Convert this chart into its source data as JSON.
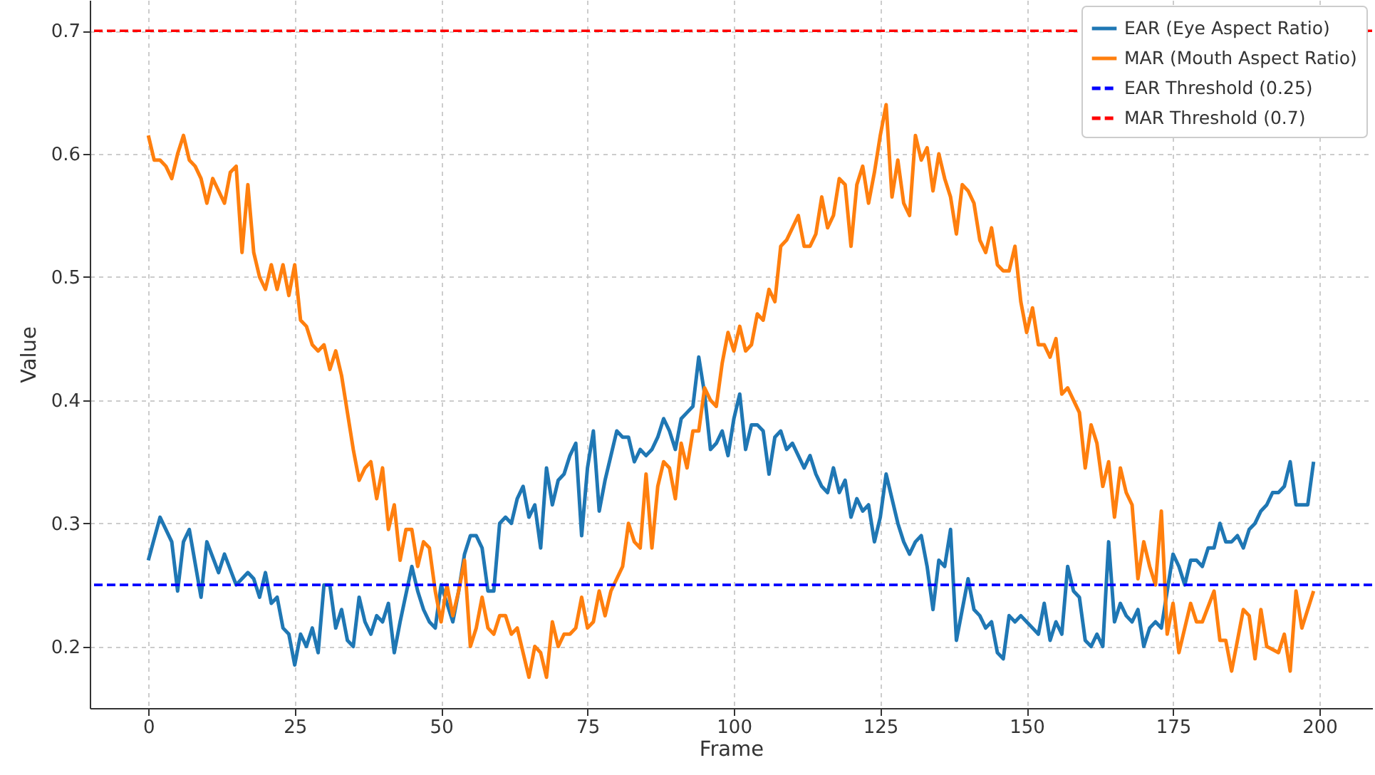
{
  "chart_data": {
    "type": "line",
    "xlabel": "Frame",
    "ylabel": "Value",
    "xlim": [
      -10,
      209
    ],
    "xticks": [
      0,
      25,
      50,
      75,
      100,
      125,
      150,
      175,
      200
    ],
    "ylim": [
      0.15,
      0.725
    ],
    "yticks": [
      0.2,
      0.3,
      0.4,
      0.5,
      0.6,
      0.7
    ],
    "grid": true,
    "legend": "top right",
    "series": [
      {
        "name": "EAR (Eye Aspect Ratio)",
        "color": "#1f77b4",
        "x": [
          0,
          2,
          4,
          5,
          6,
          7,
          9,
          10,
          12,
          13,
          15,
          17,
          18,
          19,
          20,
          21,
          22,
          23,
          24,
          25,
          26,
          27,
          28,
          29,
          30,
          31,
          32,
          33,
          34,
          35,
          36,
          37,
          38,
          39,
          40,
          41,
          42,
          43,
          45,
          46,
          47,
          48,
          49,
          50,
          51,
          52,
          53,
          54,
          55,
          56,
          57,
          58,
          59,
          60,
          61,
          62,
          63,
          64,
          65,
          66,
          67,
          68,
          69,
          70,
          71,
          72,
          73,
          74,
          75,
          76,
          77,
          78,
          79,
          80,
          81,
          82,
          83,
          84,
          85,
          86,
          87,
          88,
          89,
          90,
          91,
          92,
          93,
          94,
          95,
          96,
          97,
          98,
          99,
          100,
          101,
          102,
          103,
          104,
          105,
          106,
          107,
          108,
          109,
          110,
          111,
          112,
          113,
          114,
          115,
          116,
          117,
          118,
          119,
          120,
          121,
          122,
          123,
          124,
          125,
          126,
          127,
          128,
          129,
          130,
          131,
          132,
          133,
          134,
          135,
          136,
          137,
          138,
          139,
          140,
          141,
          142,
          143,
          144,
          145,
          146,
          147,
          148,
          149,
          150,
          151,
          152,
          153,
          154,
          155,
          156,
          157,
          158,
          159,
          160,
          161,
          162,
          163,
          164,
          165,
          166,
          167,
          168,
          169,
          170,
          171,
          172,
          173,
          174,
          175,
          176,
          177,
          178,
          179,
          180,
          181,
          182,
          183,
          184,
          185,
          186,
          187,
          188,
          189,
          190,
          191,
          192,
          193,
          194,
          195,
          196,
          198,
          199
        ],
        "values": [
          0.27,
          0.305,
          0.285,
          0.245,
          0.285,
          0.295,
          0.24,
          0.285,
          0.26,
          0.275,
          0.25,
          0.26,
          0.255,
          0.24,
          0.26,
          0.235,
          0.24,
          0.215,
          0.21,
          0.185,
          0.21,
          0.2,
          0.215,
          0.195,
          0.25,
          0.25,
          0.215,
          0.23,
          0.205,
          0.2,
          0.24,
          0.22,
          0.21,
          0.225,
          0.22,
          0.235,
          0.195,
          0.22,
          0.265,
          0.245,
          0.23,
          0.22,
          0.215,
          0.25,
          0.235,
          0.22,
          0.245,
          0.275,
          0.29,
          0.29,
          0.28,
          0.245,
          0.245,
          0.3,
          0.305,
          0.3,
          0.32,
          0.33,
          0.305,
          0.315,
          0.28,
          0.345,
          0.315,
          0.335,
          0.34,
          0.355,
          0.365,
          0.29,
          0.345,
          0.375,
          0.31,
          0.335,
          0.355,
          0.375,
          0.37,
          0.37,
          0.35,
          0.36,
          0.355,
          0.36,
          0.37,
          0.385,
          0.375,
          0.36,
          0.385,
          0.39,
          0.395,
          0.435,
          0.405,
          0.36,
          0.365,
          0.375,
          0.355,
          0.385,
          0.405,
          0.36,
          0.38,
          0.38,
          0.375,
          0.34,
          0.37,
          0.375,
          0.36,
          0.365,
          0.355,
          0.345,
          0.355,
          0.34,
          0.33,
          0.325,
          0.345,
          0.325,
          0.335,
          0.305,
          0.32,
          0.31,
          0.315,
          0.285,
          0.305,
          0.34,
          0.32,
          0.3,
          0.285,
          0.275,
          0.285,
          0.29,
          0.265,
          0.23,
          0.27,
          0.265,
          0.295,
          0.205,
          0.23,
          0.255,
          0.23,
          0.225,
          0.215,
          0.22,
          0.195,
          0.19,
          0.225,
          0.22,
          0.225,
          0.22,
          0.215,
          0.21,
          0.235,
          0.205,
          0.22,
          0.21,
          0.265,
          0.245,
          0.24,
          0.205,
          0.2,
          0.21,
          0.2,
          0.285,
          0.22,
          0.235,
          0.225,
          0.22,
          0.23,
          0.2,
          0.215,
          0.22,
          0.215,
          0.245,
          0.275,
          0.265,
          0.25,
          0.27,
          0.27,
          0.265,
          0.28,
          0.28,
          0.3,
          0.285,
          0.285,
          0.29,
          0.28,
          0.295,
          0.3,
          0.31,
          0.315,
          0.325,
          0.325,
          0.33,
          0.35,
          0.315,
          0.315,
          0.35
        ]
      },
      {
        "name": "MAR (Mouth Aspect Ratio)",
        "color": "#ff7f0e",
        "x": [
          0,
          1,
          2,
          3,
          4,
          5,
          6,
          7,
          8,
          9,
          10,
          11,
          12,
          13,
          14,
          15,
          16,
          17,
          18,
          19,
          20,
          21,
          22,
          23,
          24,
          25,
          26,
          27,
          28,
          29,
          30,
          31,
          32,
          33,
          34,
          35,
          36,
          37,
          38,
          39,
          40,
          41,
          42,
          43,
          44,
          45,
          46,
          47,
          48,
          49,
          50,
          51,
          52,
          53,
          54,
          55,
          56,
          57,
          58,
          59,
          60,
          61,
          62,
          63,
          64,
          65,
          66,
          67,
          68,
          69,
          70,
          71,
          72,
          73,
          74,
          75,
          76,
          77,
          78,
          79,
          80,
          81,
          82,
          83,
          84,
          85,
          86,
          87,
          88,
          89,
          90,
          91,
          92,
          93,
          94,
          95,
          96,
          97,
          98,
          99,
          100,
          101,
          102,
          103,
          104,
          105,
          106,
          107,
          108,
          109,
          110,
          111,
          112,
          113,
          114,
          115,
          116,
          117,
          118,
          119,
          120,
          121,
          122,
          123,
          124,
          125,
          126,
          127,
          128,
          129,
          130,
          131,
          132,
          133,
          134,
          135,
          136,
          137,
          138,
          139,
          140,
          141,
          142,
          143,
          144,
          145,
          146,
          147,
          148,
          149,
          150,
          151,
          152,
          153,
          154,
          155,
          156,
          157,
          158,
          159,
          160,
          161,
          162,
          163,
          164,
          165,
          166,
          167,
          168,
          169,
          170,
          171,
          172,
          173,
          174,
          175,
          176,
          178,
          179,
          180,
          182,
          183,
          184,
          185,
          187,
          188,
          189,
          190,
          191,
          193,
          194,
          195,
          196,
          197,
          199
        ],
        "values": [
          0.615,
          0.595,
          0.595,
          0.59,
          0.58,
          0.6,
          0.615,
          0.595,
          0.59,
          0.58,
          0.56,
          0.58,
          0.57,
          0.56,
          0.585,
          0.59,
          0.52,
          0.575,
          0.52,
          0.5,
          0.49,
          0.51,
          0.49,
          0.51,
          0.485,
          0.51,
          0.465,
          0.46,
          0.445,
          0.44,
          0.445,
          0.425,
          0.44,
          0.42,
          0.39,
          0.36,
          0.335,
          0.345,
          0.35,
          0.32,
          0.345,
          0.295,
          0.315,
          0.27,
          0.295,
          0.295,
          0.265,
          0.285,
          0.28,
          0.245,
          0.22,
          0.25,
          0.225,
          0.245,
          0.27,
          0.2,
          0.215,
          0.24,
          0.215,
          0.21,
          0.225,
          0.225,
          0.21,
          0.215,
          0.195,
          0.175,
          0.2,
          0.195,
          0.175,
          0.22,
          0.2,
          0.21,
          0.21,
          0.215,
          0.24,
          0.215,
          0.22,
          0.245,
          0.225,
          0.245,
          0.255,
          0.265,
          0.3,
          0.285,
          0.28,
          0.34,
          0.28,
          0.33,
          0.35,
          0.345,
          0.32,
          0.365,
          0.345,
          0.375,
          0.375,
          0.41,
          0.4,
          0.395,
          0.43,
          0.455,
          0.44,
          0.46,
          0.44,
          0.445,
          0.47,
          0.465,
          0.49,
          0.48,
          0.525,
          0.53,
          0.54,
          0.55,
          0.525,
          0.525,
          0.535,
          0.565,
          0.54,
          0.55,
          0.58,
          0.575,
          0.525,
          0.575,
          0.59,
          0.56,
          0.585,
          0.615,
          0.64,
          0.565,
          0.595,
          0.56,
          0.55,
          0.615,
          0.595,
          0.605,
          0.57,
          0.6,
          0.58,
          0.565,
          0.535,
          0.575,
          0.57,
          0.56,
          0.53,
          0.52,
          0.54,
          0.51,
          0.505,
          0.505,
          0.525,
          0.48,
          0.455,
          0.475,
          0.445,
          0.445,
          0.435,
          0.45,
          0.405,
          0.41,
          0.4,
          0.39,
          0.345,
          0.38,
          0.365,
          0.33,
          0.35,
          0.305,
          0.345,
          0.325,
          0.315,
          0.255,
          0.285,
          0.265,
          0.25,
          0.31,
          0.21,
          0.235,
          0.195,
          0.235,
          0.22,
          0.22,
          0.245,
          0.205,
          0.205,
          0.18,
          0.23,
          0.225,
          0.19,
          0.23,
          0.2,
          0.195,
          0.21,
          0.18,
          0.245,
          0.215,
          0.245
        ]
      }
    ],
    "ref_lines": [
      {
        "axis": "y",
        "value": 0.25,
        "label": "EAR Threshold (0.25)",
        "color": "#0000ff",
        "line_style": "dashed"
      },
      {
        "axis": "y",
        "value": 0.7,
        "label": "MAR Threshold (0.7)",
        "color": "#ff0000",
        "line_style": "dashed"
      }
    ]
  }
}
